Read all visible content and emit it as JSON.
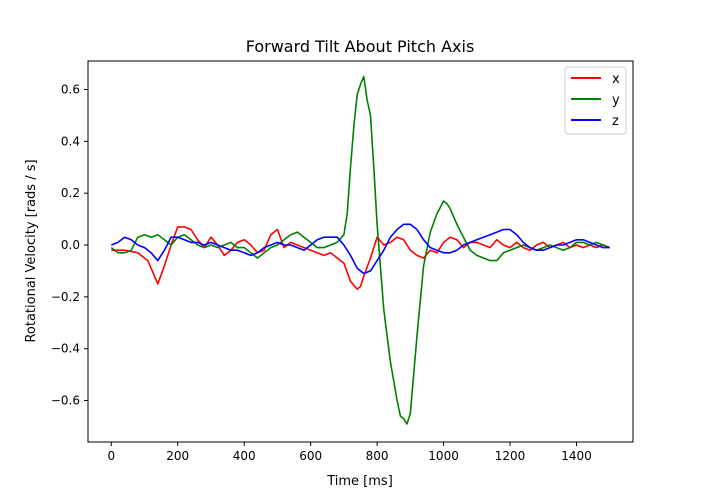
{
  "chart_data": {
    "type": "line",
    "title": "Forward Tilt About Pitch Axis",
    "xlabel": "Time [ms]",
    "ylabel": "Rotational Velocity [rads / s]",
    "xlim": [
      -70,
      1570
    ],
    "ylim": [
      -0.76,
      0.71
    ],
    "xticks": [
      0,
      200,
      400,
      600,
      800,
      1000,
      1200,
      1400
    ],
    "yticks": [
      -0.6,
      -0.4,
      -0.2,
      0.0,
      0.2,
      0.4,
      0.6
    ],
    "ytick_labels": [
      "−0.6",
      "−0.4",
      "−0.2",
      "0.0",
      "0.2",
      "0.4",
      "0.6"
    ],
    "grid": false,
    "legend_position": "top-right",
    "series": [
      {
        "name": "x",
        "color": "#ff0000",
        "x": [
          0,
          40,
          80,
          110,
          130,
          140,
          160,
          180,
          200,
          220,
          240,
          260,
          280,
          300,
          320,
          340,
          360,
          380,
          400,
          420,
          440,
          460,
          480,
          500,
          520,
          540,
          560,
          580,
          600,
          620,
          640,
          660,
          680,
          700,
          720,
          740,
          750,
          760,
          780,
          800,
          820,
          840,
          860,
          880,
          900,
          920,
          940,
          960,
          980,
          1000,
          1020,
          1040,
          1060,
          1080,
          1100,
          1120,
          1140,
          1160,
          1180,
          1200,
          1220,
          1240,
          1260,
          1280,
          1300,
          1320,
          1340,
          1360,
          1380,
          1400,
          1420,
          1440,
          1460,
          1480,
          1500
        ],
        "y": [
          -0.02,
          -0.02,
          -0.03,
          -0.06,
          -0.12,
          -0.15,
          -0.08,
          0.0,
          0.07,
          0.07,
          0.06,
          0.02,
          -0.01,
          0.03,
          0.0,
          -0.04,
          -0.02,
          0.01,
          0.02,
          0.0,
          -0.03,
          -0.02,
          0.04,
          0.06,
          -0.01,
          0.01,
          0.0,
          -0.01,
          -0.02,
          -0.03,
          -0.04,
          -0.03,
          -0.05,
          -0.07,
          -0.14,
          -0.17,
          -0.16,
          -0.12,
          -0.05,
          0.03,
          0.0,
          0.01,
          0.03,
          0.02,
          -0.02,
          -0.04,
          -0.05,
          -0.02,
          -0.03,
          0.01,
          0.03,
          0.02,
          -0.01,
          0.01,
          0.01,
          0.0,
          -0.01,
          0.02,
          0.0,
          -0.01,
          0.01,
          -0.01,
          -0.02,
          0.0,
          0.01,
          -0.01,
          0.0,
          0.01,
          -0.01,
          0.0,
          -0.01,
          0.0,
          -0.01,
          0.0,
          -0.01
        ]
      },
      {
        "name": "y",
        "color": "#008000",
        "x": [
          0,
          20,
          40,
          60,
          80,
          100,
          120,
          140,
          160,
          180,
          200,
          220,
          240,
          260,
          280,
          300,
          320,
          340,
          360,
          380,
          400,
          420,
          440,
          460,
          480,
          500,
          520,
          540,
          560,
          580,
          600,
          620,
          640,
          660,
          680,
          700,
          710,
          720,
          730,
          740,
          750,
          760,
          770,
          780,
          790,
          800,
          820,
          840,
          860,
          870,
          880,
          890,
          900,
          920,
          940,
          960,
          980,
          1000,
          1010,
          1020,
          1040,
          1060,
          1080,
          1100,
          1120,
          1140,
          1160,
          1180,
          1200,
          1220,
          1240,
          1260,
          1280,
          1300,
          1320,
          1340,
          1360,
          1380,
          1400,
          1420,
          1440,
          1460,
          1480,
          1500
        ],
        "y": [
          -0.01,
          -0.03,
          -0.03,
          -0.02,
          0.03,
          0.04,
          0.03,
          0.04,
          0.02,
          0.0,
          0.03,
          0.04,
          0.02,
          0.0,
          -0.01,
          0.0,
          -0.01,
          0.0,
          0.01,
          -0.01,
          -0.01,
          -0.03,
          -0.05,
          -0.03,
          -0.01,
          0.0,
          0.02,
          0.04,
          0.05,
          0.03,
          0.01,
          -0.01,
          -0.01,
          0.0,
          0.01,
          0.04,
          0.12,
          0.3,
          0.46,
          0.58,
          0.62,
          0.65,
          0.56,
          0.5,
          0.3,
          0.08,
          -0.25,
          -0.45,
          -0.6,
          -0.66,
          -0.67,
          -0.69,
          -0.65,
          -0.35,
          -0.08,
          0.05,
          0.12,
          0.17,
          0.16,
          0.14,
          0.08,
          0.03,
          -0.02,
          -0.04,
          -0.05,
          -0.06,
          -0.06,
          -0.03,
          -0.02,
          -0.01,
          0.0,
          -0.01,
          -0.02,
          -0.01,
          0.0,
          -0.01,
          -0.02,
          -0.01,
          0.01,
          0.01,
          0.0,
          0.01,
          0.0,
          -0.01
        ]
      },
      {
        "name": "z",
        "color": "#0000ff",
        "x": [
          0,
          20,
          40,
          60,
          80,
          100,
          120,
          140,
          160,
          180,
          200,
          220,
          240,
          260,
          280,
          300,
          320,
          340,
          360,
          380,
          400,
          420,
          440,
          460,
          480,
          500,
          520,
          540,
          560,
          580,
          600,
          620,
          640,
          660,
          680,
          700,
          720,
          740,
          760,
          780,
          800,
          820,
          840,
          860,
          880,
          900,
          920,
          940,
          960,
          980,
          1000,
          1020,
          1040,
          1060,
          1080,
          1100,
          1120,
          1140,
          1160,
          1180,
          1200,
          1220,
          1240,
          1260,
          1280,
          1300,
          1320,
          1340,
          1360,
          1380,
          1400,
          1420,
          1440,
          1460,
          1480,
          1500
        ],
        "y": [
          0.0,
          0.01,
          0.03,
          0.02,
          0.0,
          -0.01,
          -0.03,
          -0.06,
          -0.02,
          0.03,
          0.03,
          0.02,
          0.01,
          0.01,
          0.0,
          0.01,
          0.0,
          -0.01,
          -0.02,
          -0.02,
          -0.03,
          -0.04,
          -0.03,
          -0.01,
          0.0,
          0.01,
          0.0,
          0.0,
          -0.01,
          -0.02,
          0.0,
          0.02,
          0.03,
          0.03,
          0.03,
          0.0,
          -0.04,
          -0.09,
          -0.11,
          -0.1,
          -0.06,
          -0.02,
          0.03,
          0.06,
          0.08,
          0.08,
          0.06,
          0.02,
          -0.01,
          -0.02,
          -0.03,
          -0.03,
          -0.02,
          0.0,
          0.01,
          0.02,
          0.03,
          0.04,
          0.05,
          0.06,
          0.06,
          0.04,
          0.01,
          -0.01,
          -0.02,
          -0.02,
          -0.01,
          0.0,
          0.0,
          0.01,
          0.02,
          0.02,
          0.01,
          0.0,
          -0.01,
          -0.01
        ]
      }
    ]
  }
}
